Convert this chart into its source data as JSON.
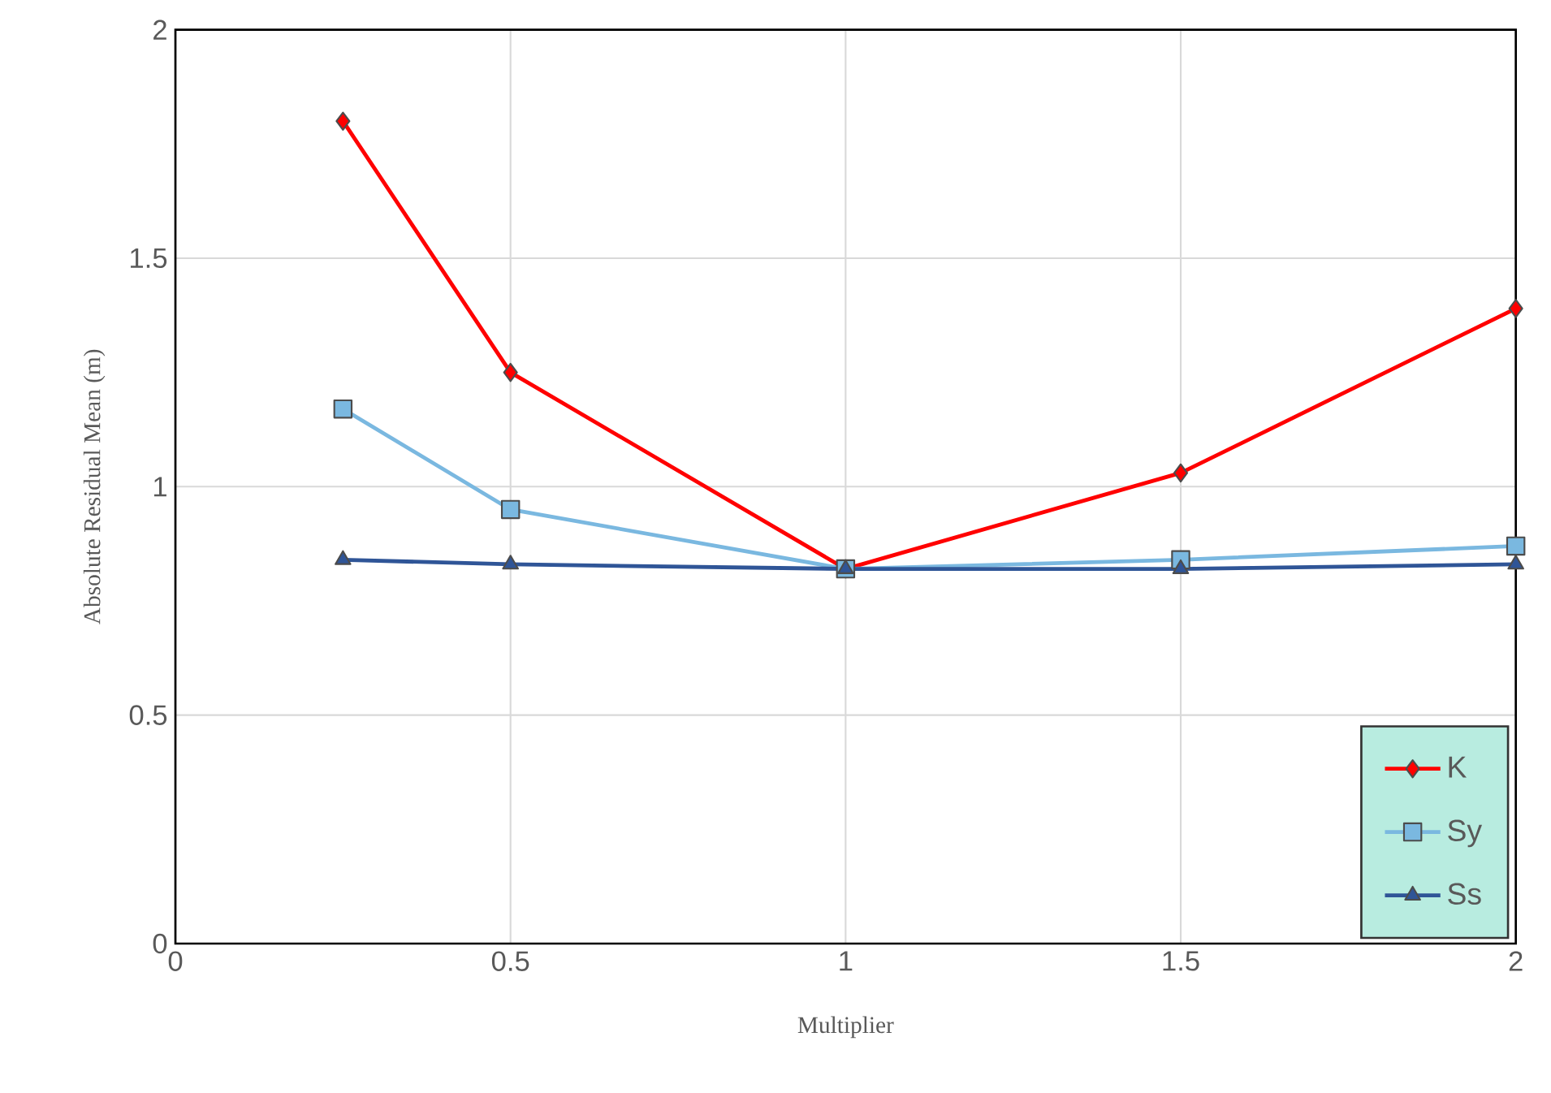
{
  "chart_data": {
    "type": "line",
    "xlabel": "Multiplier",
    "ylabel": "Absolute  Residual Mean (m)",
    "x": [
      0.25,
      0.5,
      1,
      1.5,
      2
    ],
    "series": [
      {
        "name": "K",
        "color": "#ff0000",
        "marker": "diamond",
        "values": [
          1.8,
          1.25,
          0.82,
          1.03,
          1.39
        ]
      },
      {
        "name": "Sy",
        "color": "#7ab8e0",
        "marker": "square",
        "values": [
          1.17,
          0.95,
          0.82,
          0.84,
          0.87
        ]
      },
      {
        "name": "Ss",
        "color": "#2f5597",
        "marker": "triangle",
        "values": [
          0.84,
          0.83,
          0.82,
          0.82,
          0.83
        ]
      }
    ],
    "xlim": [
      0,
      2
    ],
    "ylim": [
      0,
      2
    ],
    "xticks": [
      0,
      0.5,
      1,
      1.5,
      2
    ],
    "yticks": [
      0,
      0.5,
      1,
      1.5,
      2
    ],
    "grid": true,
    "legend": "bottom right",
    "line_style": "solid"
  }
}
